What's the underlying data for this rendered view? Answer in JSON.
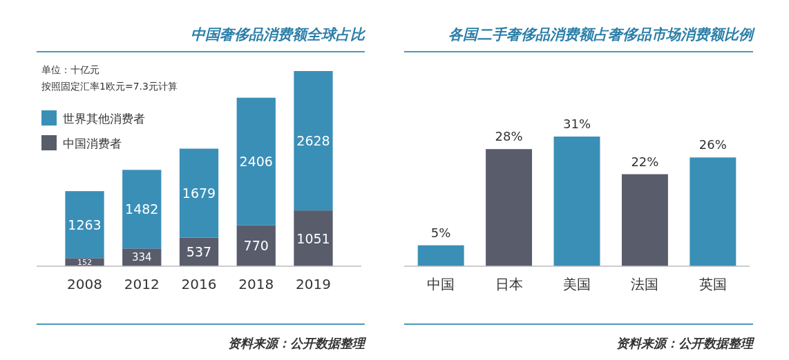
{
  "chart_data": [
    {
      "type": "bar",
      "title": "中国奢侈品消费额全球占比",
      "stacked": true,
      "data_labels": true,
      "legend": "top left",
      "categories": [
        "2008",
        "2012",
        "2016",
        "2018",
        "2019"
      ],
      "series": [
        {
          "name": "中国消费者",
          "color": "#585c6b",
          "values": [
            152,
            334,
            537,
            770,
            1051
          ]
        },
        {
          "name": "世界其他消费者",
          "color": "#3a8fb7",
          "values": [
            1263,
            1482,
            1679,
            2406,
            2628
          ]
        }
      ],
      "annotations": [
        "单位：十亿元",
        "按照固定汇率1欧元=7.3元计算",
        "资料来源：公开数据整理"
      ]
    },
    {
      "type": "bar",
      "title": "各国二手奢侈品消费额占奢侈品市场消费额比例",
      "categories": [
        "中国",
        "日本",
        "美国",
        "法国",
        "英国"
      ],
      "values": [
        5,
        28,
        31,
        22,
        26
      ],
      "colors": [
        "#3a8fb7",
        "#585c6b",
        "#3a8fb7",
        "#585c6b",
        "#3a8fb7"
      ],
      "value_labels": [
        "5%",
        "28%",
        "31%",
        "22%",
        "26%"
      ],
      "annotations": [
        "资料来源：公开数据整理"
      ]
    }
  ]
}
